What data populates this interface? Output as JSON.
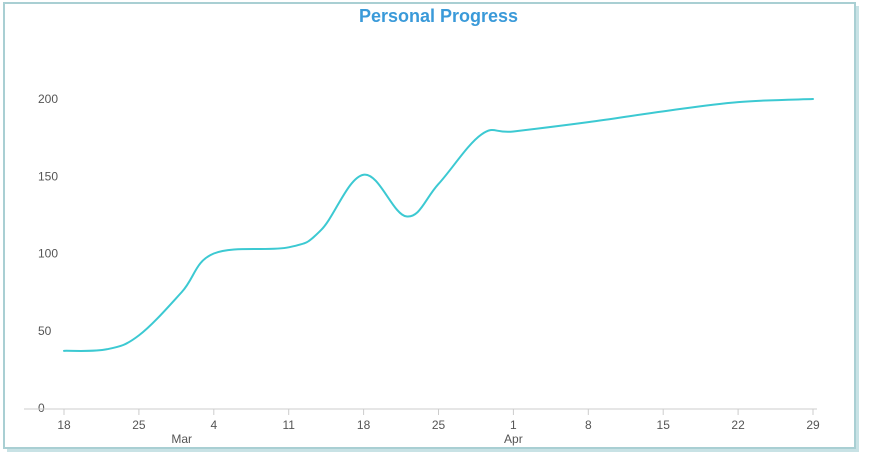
{
  "colors": {
    "line": "#3cc9d2",
    "title": "#3a9ad9",
    "axis": "#cccccc",
    "text": "#555555",
    "frame": "#a9cfd3"
  },
  "chart_data": {
    "type": "line",
    "title": "Personal Progress",
    "xlabel": "",
    "ylabel": "",
    "x_axis": {
      "type": "date",
      "start": "2015-02-18",
      "end": "2015-04-29",
      "tick_labels": [
        "18",
        "25",
        "4",
        "11",
        "18",
        "25",
        "1",
        "8",
        "15",
        "22",
        "29"
      ],
      "tick_dates": [
        "2015-02-18",
        "2015-02-25",
        "2015-03-04",
        "2015-03-11",
        "2015-03-18",
        "2015-03-25",
        "2015-04-01",
        "2015-04-08",
        "2015-04-15",
        "2015-04-22",
        "2015-04-29"
      ],
      "month_labels": [
        {
          "label": "Mar",
          "date": "2015-02-29"
        },
        {
          "label": "Apr",
          "date": "2015-04-01"
        }
      ]
    },
    "y_axis": {
      "ylim": [
        0,
        200
      ],
      "ticks": [
        0,
        50,
        100,
        150,
        200
      ],
      "tick_labels": [
        "0",
        "50",
        "100",
        "150",
        "200"
      ]
    },
    "grid": false,
    "legend": "none",
    "series": [
      {
        "points": [
          {
            "x": "2015-02-18",
            "y": 37
          },
          {
            "x": "2015-02-22",
            "y": 38
          },
          {
            "x": "2015-02-25",
            "y": 47
          },
          {
            "x": "2015-03-01",
            "y": 75
          },
          {
            "x": "2015-03-04",
            "y": 100
          },
          {
            "x": "2015-03-11",
            "y": 104
          },
          {
            "x": "2015-03-14",
            "y": 115
          },
          {
            "x": "2015-03-18",
            "y": 151
          },
          {
            "x": "2015-03-22",
            "y": 124
          },
          {
            "x": "2015-03-25",
            "y": 145
          },
          {
            "x": "2015-03-29",
            "y": 177
          },
          {
            "x": "2015-04-01",
            "y": 179
          },
          {
            "x": "2015-04-08",
            "y": 185
          },
          {
            "x": "2015-04-15",
            "y": 192
          },
          {
            "x": "2015-04-22",
            "y": 198
          },
          {
            "x": "2015-04-29",
            "y": 200
          }
        ]
      }
    ]
  }
}
